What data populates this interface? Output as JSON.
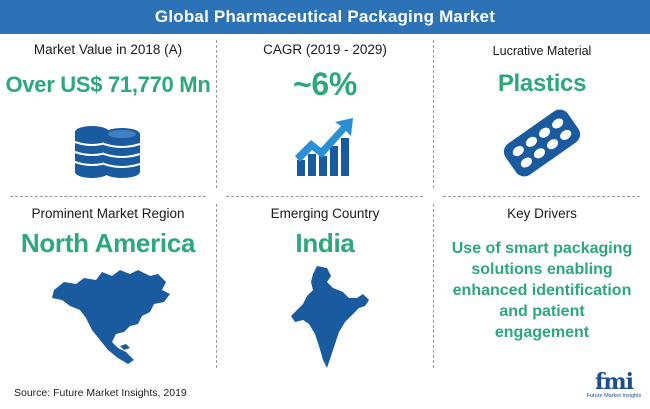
{
  "title": "Global Pharmaceutical Packaging Market",
  "colors": {
    "title_bar": "#2b72b6",
    "value_text": "#2da87a",
    "icon_blue": "#1a5a9e",
    "divider": "#9b9b9b"
  },
  "cells": {
    "market_value": {
      "label": "Market Value in 2018 (A)",
      "value": "Over US$ 71,770 Mn",
      "icon": "coin-stack-icon"
    },
    "cagr": {
      "label": "CAGR (2019 - 2029)",
      "value": "~6%",
      "icon": "growth-chart-icon"
    },
    "material": {
      "label": "Lucrative Material",
      "value": "Plastics",
      "icon": "pill-blister-icon"
    },
    "region": {
      "label": "Prominent Market Region",
      "value": "North America",
      "icon": "north-america-map-icon"
    },
    "country": {
      "label": "Emerging Country",
      "value": "India",
      "icon": "india-map-icon"
    },
    "drivers": {
      "label": "Key Drivers",
      "value_lines": [
        "Use of smart packaging",
        "solutions enabling",
        "enhanced identification",
        "and patient",
        "engagement"
      ]
    }
  },
  "source": "Source: Future Market Insights, 2019",
  "logo": {
    "letters": "fmi",
    "subtitle": "Future Market Insights"
  }
}
